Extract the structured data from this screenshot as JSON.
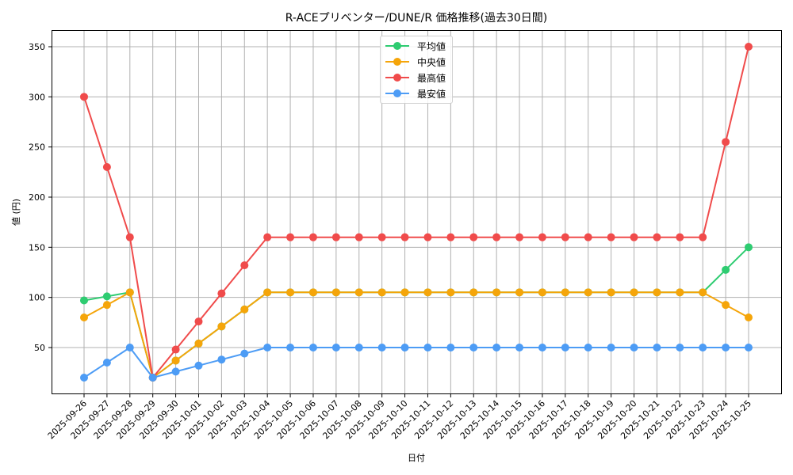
{
  "chart_data": {
    "type": "line",
    "title": "R-ACEプリベンター/DUNE/R 価格推移(過去30日間)",
    "xlabel": "日付",
    "ylabel": "値 (円)",
    "ylim": [
      4,
      367
    ],
    "yticks": [
      50,
      100,
      150,
      200,
      250,
      300,
      350
    ],
    "grid": true,
    "legend_position": "upper center",
    "categories": [
      "2025-09-26",
      "2025-09-27",
      "2025-09-28",
      "2025-09-29",
      "2025-09-30",
      "2025-10-01",
      "2025-10-02",
      "2025-10-03",
      "2025-10-04",
      "2025-10-05",
      "2025-10-06",
      "2025-10-07",
      "2025-10-08",
      "2025-10-09",
      "2025-10-10",
      "2025-10-11",
      "2025-10-12",
      "2025-10-13",
      "2025-10-14",
      "2025-10-15",
      "2025-10-16",
      "2025-10-17",
      "2025-10-18",
      "2025-10-19",
      "2025-10-20",
      "2025-10-21",
      "2025-10-22",
      "2025-10-23",
      "2025-10-24",
      "2025-10-25"
    ],
    "series": [
      {
        "name": "平均値",
        "color": "#2ecc71",
        "values": [
          97,
          101,
          105,
          20,
          37,
          54,
          71,
          88,
          105,
          105,
          105,
          105,
          105,
          105,
          105,
          105,
          105,
          105,
          105,
          105,
          105,
          105,
          105,
          105,
          105,
          105,
          105,
          105,
          127.5,
          150
        ]
      },
      {
        "name": "中央値",
        "color": "#f5a50a",
        "values": [
          80,
          92.5,
          105,
          20,
          37,
          54,
          71,
          88,
          105,
          105,
          105,
          105,
          105,
          105,
          105,
          105,
          105,
          105,
          105,
          105,
          105,
          105,
          105,
          105,
          105,
          105,
          105,
          105,
          92.5,
          80
        ]
      },
      {
        "name": "最高値",
        "color": "#f04b4b",
        "values": [
          300,
          230,
          160,
          20,
          48,
          76,
          104,
          132,
          160,
          160,
          160,
          160,
          160,
          160,
          160,
          160,
          160,
          160,
          160,
          160,
          160,
          160,
          160,
          160,
          160,
          160,
          160,
          160,
          255,
          350
        ]
      },
      {
        "name": "最安値",
        "color": "#4d9cf5",
        "values": [
          20,
          35,
          50,
          20,
          26,
          32,
          38,
          44,
          50,
          50,
          50,
          50,
          50,
          50,
          50,
          50,
          50,
          50,
          50,
          50,
          50,
          50,
          50,
          50,
          50,
          50,
          50,
          50,
          50,
          50
        ]
      }
    ]
  },
  "legend": {
    "items": [
      {
        "label": "平均値",
        "color": "#2ecc71"
      },
      {
        "label": "中央値",
        "color": "#f5a50a"
      },
      {
        "label": "最高値",
        "color": "#f04b4b"
      },
      {
        "label": "最安値",
        "color": "#4d9cf5"
      }
    ]
  }
}
